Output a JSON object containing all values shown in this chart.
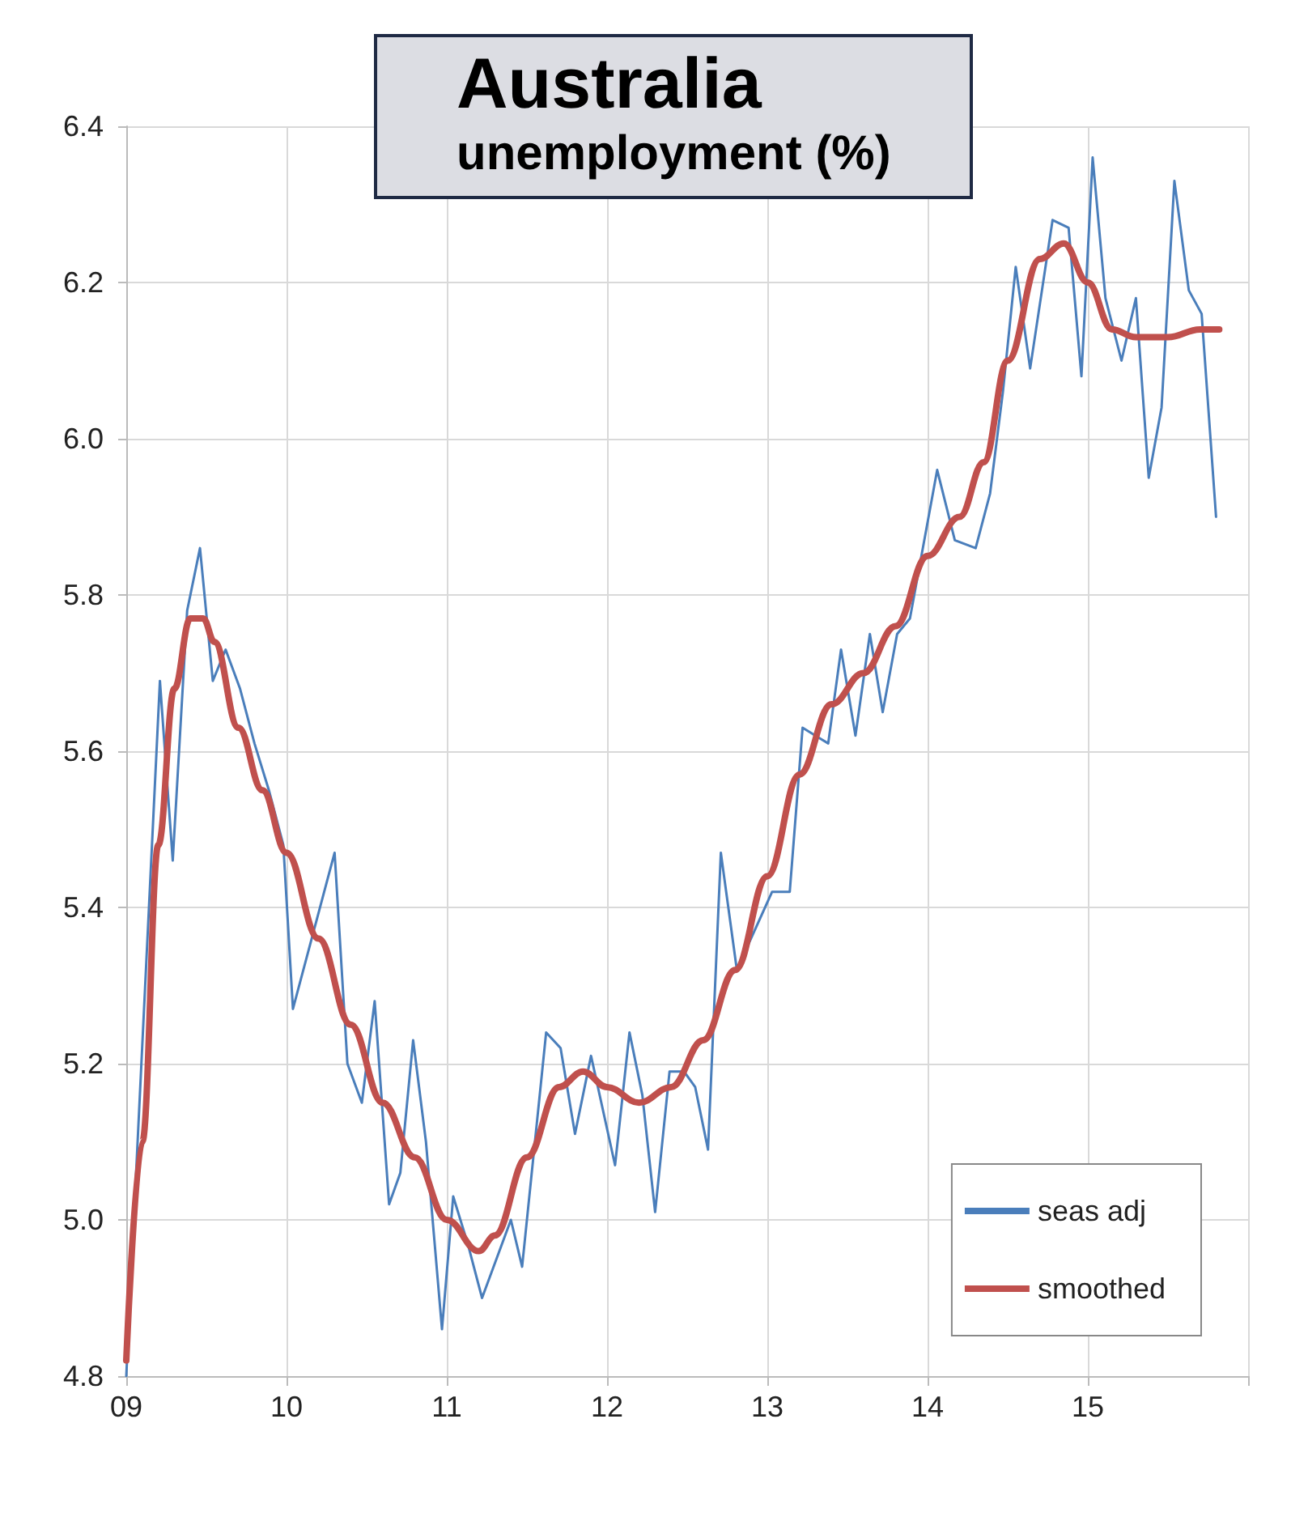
{
  "chart_data": {
    "type": "line",
    "title": "Australia",
    "subtitle": "unemployment (%)",
    "xlim": [
      2009,
      2016
    ],
    "xticks": [
      {
        "value": 2009,
        "label": "09"
      },
      {
        "value": 2010,
        "label": "10"
      },
      {
        "value": 2011,
        "label": "11"
      },
      {
        "value": 2012,
        "label": "12"
      },
      {
        "value": 2013,
        "label": "13"
      },
      {
        "value": 2014,
        "label": "14"
      },
      {
        "value": 2015,
        "label": "15"
      },
      {
        "value": 2016,
        "label": null
      }
    ],
    "ylim": [
      4.8,
      6.4
    ],
    "yticks": [
      4.8,
      {
        "value": 5,
        "label": "5.0"
      },
      5.2,
      5.4,
      5.6,
      5.8,
      {
        "value": 6,
        "label": "6.0"
      },
      6.2,
      6.4
    ],
    "grid": true,
    "legend": "bottom right",
    "marker": "none",
    "line_style": "solid",
    "series": [
      {
        "name": "seas adj",
        "color": "#4a7ebb",
        "x": [
          2009.0,
          2009.21,
          2009.29,
          2009.38,
          2009.46,
          2009.54,
          2009.62,
          2009.71,
          2009.8,
          2009.89,
          2009.98,
          2010.04,
          2010.3,
          2010.38,
          2010.47,
          2010.55,
          2010.64,
          2010.71,
          2010.79,
          2010.87,
          2010.97,
          2011.04,
          2011.13,
          2011.22,
          2011.4,
          2011.47,
          2011.62,
          2011.71,
          2011.8,
          2011.9,
          2012.05,
          2012.14,
          2012.22,
          2012.3,
          2012.39,
          2012.48,
          2012.55,
          2012.63,
          2012.71,
          2012.81,
          2012.92,
          2013.03,
          2013.14,
          2013.22,
          2013.38,
          2013.46,
          2013.55,
          2013.64,
          2013.72,
          2013.81,
          2013.89,
          2014.06,
          2014.17,
          2014.3,
          2014.39,
          2014.47,
          2014.55,
          2014.64,
          2014.78,
          2014.88,
          2014.96,
          2015.03,
          2015.11,
          2015.21,
          2015.3,
          2015.38,
          2015.46,
          2015.54,
          2015.63,
          2015.71,
          2015.8
        ],
        "values": [
          4.8,
          5.69,
          5.46,
          5.78,
          5.86,
          5.69,
          5.73,
          5.68,
          5.61,
          5.55,
          5.48,
          5.27,
          5.47,
          5.2,
          5.15,
          5.28,
          5.02,
          5.06,
          5.23,
          5.1,
          4.86,
          5.03,
          4.97,
          4.9,
          5.0,
          4.94,
          5.24,
          5.22,
          5.11,
          5.21,
          5.07,
          5.24,
          5.16,
          5.01,
          5.19,
          5.19,
          5.17,
          5.09,
          5.47,
          5.32,
          5.37,
          5.42,
          5.42,
          5.63,
          5.61,
          5.73,
          5.62,
          5.75,
          5.65,
          5.75,
          5.77,
          5.96,
          5.87,
          5.86,
          5.93,
          6.06,
          6.22,
          6.09,
          6.28,
          6.27,
          6.08,
          6.36,
          6.18,
          6.1,
          6.18,
          5.95,
          6.04,
          6.33,
          6.19,
          6.16,
          5.9
        ]
      },
      {
        "name": "smoothed",
        "color": "#c0504d",
        "x": [
          2009.0,
          2009.1,
          2009.2,
          2009.3,
          2009.4,
          2009.48,
          2009.55,
          2009.7,
          2009.85,
          2010.0,
          2010.2,
          2010.4,
          2010.6,
          2010.8,
          2011.0,
          2011.2,
          2011.3,
          2011.5,
          2011.7,
          2011.85,
          2012.0,
          2012.2,
          2012.4,
          2012.6,
          2012.8,
          2013.0,
          2013.2,
          2013.4,
          2013.6,
          2013.8,
          2014.0,
          2014.2,
          2014.35,
          2014.5,
          2014.7,
          2014.85,
          2015.0,
          2015.15,
          2015.3,
          2015.5,
          2015.7,
          2015.82
        ],
        "values": [
          4.82,
          5.1,
          5.48,
          5.68,
          5.77,
          5.77,
          5.74,
          5.63,
          5.55,
          5.47,
          5.36,
          5.25,
          5.15,
          5.08,
          5.0,
          4.96,
          4.98,
          5.08,
          5.17,
          5.19,
          5.17,
          5.15,
          5.17,
          5.23,
          5.32,
          5.44,
          5.57,
          5.66,
          5.7,
          5.76,
          5.85,
          5.9,
          5.97,
          6.1,
          6.23,
          6.25,
          6.2,
          6.14,
          6.13,
          6.13,
          6.14,
          6.14
        ]
      }
    ]
  }
}
